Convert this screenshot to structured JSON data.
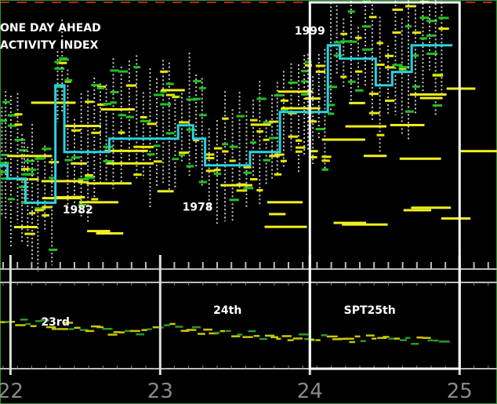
{
  "chart_data": {
    "type": "line",
    "title_lines": [
      "ONE DAY AHEAD",
      "ACTIVITY INDEX"
    ],
    "x_ticks": [
      "22",
      "23",
      "24",
      "25"
    ],
    "xlim": [
      21.93,
      25.25
    ],
    "ylim": [
      0,
      100
    ],
    "annotations": [
      {
        "text": "1999",
        "x": 24.0,
        "y": 87
      },
      {
        "text": "1982",
        "x": 22.45,
        "y": 20
      },
      {
        "text": "1978",
        "x": 23.25,
        "y": 21
      },
      {
        "text": "23rd",
        "x": 22.3,
        "y": -30
      },
      {
        "text": "24th",
        "x": 23.45,
        "y": -35
      },
      {
        "text": "SPT25th",
        "x": 24.4,
        "y": -35
      }
    ],
    "highlight_range": [
      24.0,
      25.0
    ],
    "step_series": {
      "color": "#27d3e0",
      "x": [
        21.93,
        21.98,
        22.07,
        22.1,
        22.16,
        22.3,
        22.36,
        22.54,
        22.66,
        22.82,
        23.0,
        23.12,
        23.22,
        23.3,
        23.46,
        23.6,
        23.73,
        23.8,
        23.95,
        24.0,
        24.12,
        24.2,
        24.3,
        24.44,
        24.55,
        24.68,
        24.78,
        24.9
      ],
      "y": [
        38,
        33,
        33,
        24,
        24,
        68,
        43,
        43,
        48,
        48,
        48,
        53,
        48,
        38,
        38,
        43,
        43,
        58,
        58,
        58,
        83,
        78,
        78,
        68,
        73,
        83,
        83,
        83
      ]
    },
    "lower_trace": {
      "x": [
        21.93,
        22.2,
        22.5,
        22.8,
        23.1,
        23.4,
        23.7,
        24.0,
        24.3,
        24.6,
        24.9
      ],
      "y": [
        -32,
        -31,
        -29,
        -27,
        -30,
        -27,
        -26,
        -25,
        -25,
        -24,
        -25
      ]
    }
  }
}
